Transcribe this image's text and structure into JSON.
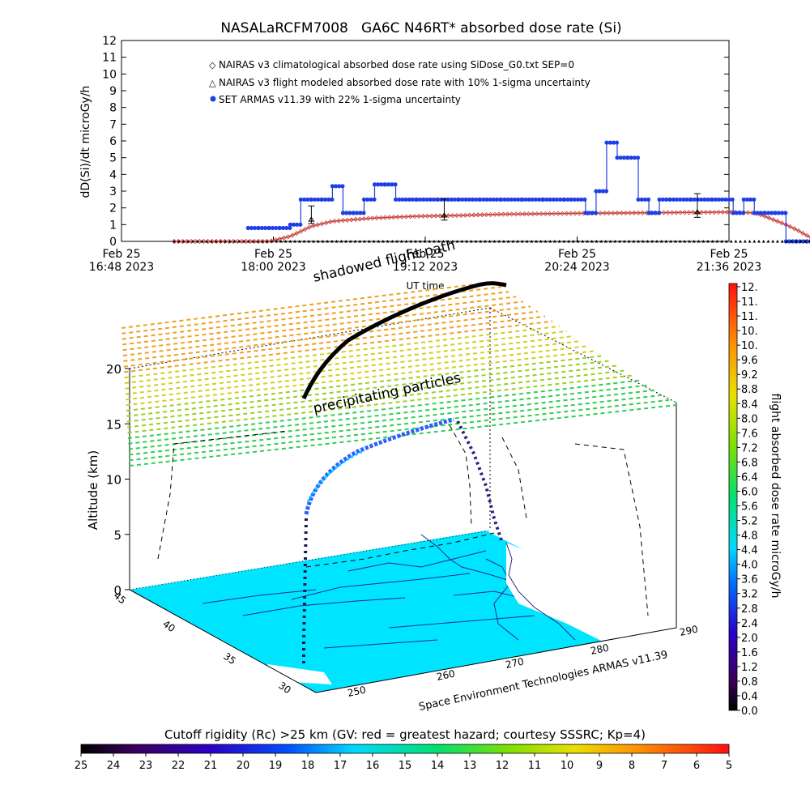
{
  "colors": {
    "series_nairas": "#c8413a",
    "series_flight": "#000000",
    "series_armas": "#1f3fe6",
    "land": "#00e5ff",
    "grid": "#000000"
  },
  "chart_data": [
    {
      "type": "line",
      "title": "NASALaRCFM7008   GA6C N46RT* absorbed dose rate (Si)",
      "ylabel": "dD(Si)/dt microGy/h",
      "xlabel": "UT time",
      "ylim": [
        0,
        12
      ],
      "xlim": [
        "2023-02-25 16:48",
        "2023-02-25 21:36"
      ],
      "y_ticks": [
        "0",
        "1",
        "2",
        "3",
        "4",
        "5",
        "6",
        "7",
        "8",
        "9",
        "10",
        "11",
        "12"
      ],
      "x_ticks": [
        {
          "date": "Feb 25",
          "time": "16:48 2023"
        },
        {
          "date": "Feb 25",
          "time": "18:00 2023"
        },
        {
          "date": "Feb 25",
          "time": "19:12 2023"
        },
        {
          "date": "Feb 25",
          "time": "20:24 2023"
        },
        {
          "date": "Feb 25",
          "time": "21:36 2023"
        }
      ],
      "legend_position": "top-left",
      "series": [
        {
          "name": "NAIRAS v3 climatological absorbed dose rate using SiDose_G0.txt SEP=0",
          "x_minutes_after_1648": [
            25,
            45,
            60,
            70,
            80,
            90,
            100,
            110,
            120,
            130,
            140,
            160,
            180,
            200,
            220,
            240,
            260,
            270,
            280,
            290,
            300,
            305,
            310,
            315,
            320,
            325,
            330,
            340,
            350
          ],
          "values": [
            0,
            0,
            0,
            0,
            0.3,
            0.9,
            1.2,
            1.3,
            1.4,
            1.45,
            1.5,
            1.55,
            1.62,
            1.65,
            1.68,
            1.7,
            1.72,
            1.73,
            1.74,
            1.75,
            1.7,
            1.5,
            1.25,
            1.0,
            0.7,
            0.35,
            0,
            0,
            0
          ]
        },
        {
          "name": "NAIRAS v3 flight modeled absorbed dose rate with 10% 1-sigma uncertainty",
          "points": [
            {
              "x_minutes_after_1648": 90,
              "value": 1.3
            },
            {
              "x_minutes_after_1648": 153,
              "value": 1.55
            },
            {
              "x_minutes_after_1648": 273,
              "value": 1.75
            }
          ]
        },
        {
          "name": "SET ARMAS v11.39 with 22% 1-sigma uncertainty",
          "x_minutes_after_1648": [
            60,
            65,
            70,
            75,
            80,
            85,
            90,
            95,
            100,
            105,
            110,
            115,
            120,
            125,
            130,
            140,
            150,
            160,
            170,
            180,
            190,
            200,
            210,
            220,
            225,
            230,
            235,
            240,
            245,
            250,
            255,
            260,
            270,
            280,
            290,
            295,
            300,
            305,
            310,
            315,
            320,
            325,
            330
          ],
          "values": [
            0.8,
            0.8,
            0.8,
            0.8,
            1.0,
            2.5,
            2.5,
            2.5,
            3.3,
            1.7,
            1.7,
            2.5,
            3.4,
            3.4,
            2.5,
            2.5,
            2.5,
            2.5,
            2.5,
            2.5,
            2.5,
            2.5,
            2.5,
            1.7,
            3.0,
            5.9,
            5.0,
            5.0,
            2.5,
            1.7,
            2.5,
            2.5,
            2.5,
            2.5,
            1.7,
            2.5,
            1.7,
            1.7,
            1.7,
            0,
            0,
            0,
            0
          ]
        }
      ]
    },
    {
      "type": "3d-surface",
      "zlabel": "Altitude (km)",
      "z_ticks": [
        "0",
        "5",
        "10",
        "15",
        "20"
      ],
      "lat_ticks": [
        "40",
        "35",
        "30"
      ],
      "lat_top": "45",
      "lon_ticks": [
        "250",
        "260",
        "270",
        "280",
        "290"
      ],
      "annotations": [
        "shadowed flight path",
        "precipitating particles"
      ],
      "credit": "Space Environment Technologies ARMAS v11.39"
    }
  ],
  "dose_colorbar": {
    "label": "flight absorbed dose rate microGy/h",
    "ticks": [
      "12.",
      "11.",
      "11.",
      "10.",
      "10.",
      "9.6",
      "9.2",
      "8.8",
      "8.4",
      "8.0",
      "7.6",
      "7.2",
      "6.8",
      "6.4",
      "6.0",
      "5.6",
      "5.2",
      "4.8",
      "4.4",
      "4.0",
      "3.6",
      "3.2",
      "2.8",
      "2.4",
      "2.0",
      "1.6",
      "1.2",
      "0.8",
      "0.4",
      "0.0"
    ]
  },
  "rigidity_colorbar": {
    "label": "Cutoff rigidity (Rc) >25 km (GV: red = greatest hazard; courtesy SSSRC; Kp=4)",
    "ticks": [
      "25",
      "24",
      "23",
      "22",
      "21",
      "20",
      "19",
      "18",
      "17",
      "16",
      "15",
      "14",
      "13",
      "12",
      "11",
      "10",
      "9",
      "8",
      "7",
      "6",
      "5"
    ]
  }
}
